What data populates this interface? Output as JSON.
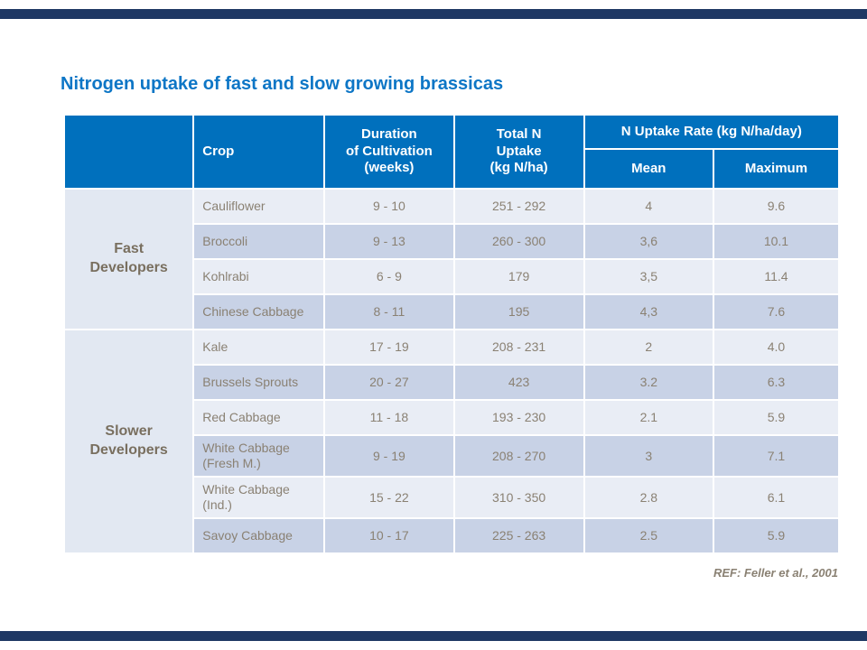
{
  "slide": {
    "title": "Nitrogen uptake of fast and slow growing brassicas",
    "reference": "REF: Feller et al., 2001"
  },
  "colors": {
    "accent_bar_navy": "#1f3864",
    "header_blue": "#0070bd",
    "title_blue": "#0d76c6",
    "row_light": "#e9edf5",
    "row_dark": "#c8d2e6",
    "text_brown": "#8a8173"
  },
  "table": {
    "header": {
      "crop": "Crop",
      "duration": "Duration\nof Cultivation\n(weeks)",
      "total_n": "Total N\nUptake\n(kg N/ha)",
      "uptake_rate": "N Uptake Rate (kg N/ha/day)",
      "mean": "Mean",
      "maximum": "Maximum"
    },
    "groups": [
      {
        "label": "Fast\nDevelopers"
      },
      {
        "label": "Slower\nDevelopers"
      }
    ],
    "rows": [
      {
        "crop": "Cauliflower",
        "duration": "9 - 10",
        "total_n": "251 - 292",
        "mean": "4",
        "maximum": "9.6"
      },
      {
        "crop": "Broccoli",
        "duration": "9 - 13",
        "total_n": "260 - 300",
        "mean": "3,6",
        "maximum": "10.1"
      },
      {
        "crop": "Kohlrabi",
        "duration": "6 - 9",
        "total_n": "179",
        "mean": "3,5",
        "maximum": "11.4"
      },
      {
        "crop": "Chinese Cabbage",
        "duration": "8 - 11",
        "total_n": "195",
        "mean": "4,3",
        "maximum": "7.6"
      },
      {
        "crop": "Kale",
        "duration": "17 - 19",
        "total_n": "208 - 231",
        "mean": "2",
        "maximum": "4.0"
      },
      {
        "crop": "Brussels Sprouts",
        "duration": "20 - 27",
        "total_n": "423",
        "mean": "3.2",
        "maximum": "6.3"
      },
      {
        "crop": "Red Cabbage",
        "duration": "11 - 18",
        "total_n": "193 - 230",
        "mean": "2.1",
        "maximum": "5.9"
      },
      {
        "crop": "White Cabbage (Fresh M.)",
        "duration": "9 - 19",
        "total_n": "208 - 270",
        "mean": "3",
        "maximum": "7.1"
      },
      {
        "crop": "White Cabbage (Ind.)",
        "duration": "15 - 22",
        "total_n": "310 - 350",
        "mean": "2.8",
        "maximum": "6.1"
      },
      {
        "crop": "Savoy Cabbage",
        "duration": "10 - 17",
        "total_n": "225 - 263",
        "mean": "2.5",
        "maximum": "5.9"
      }
    ]
  }
}
